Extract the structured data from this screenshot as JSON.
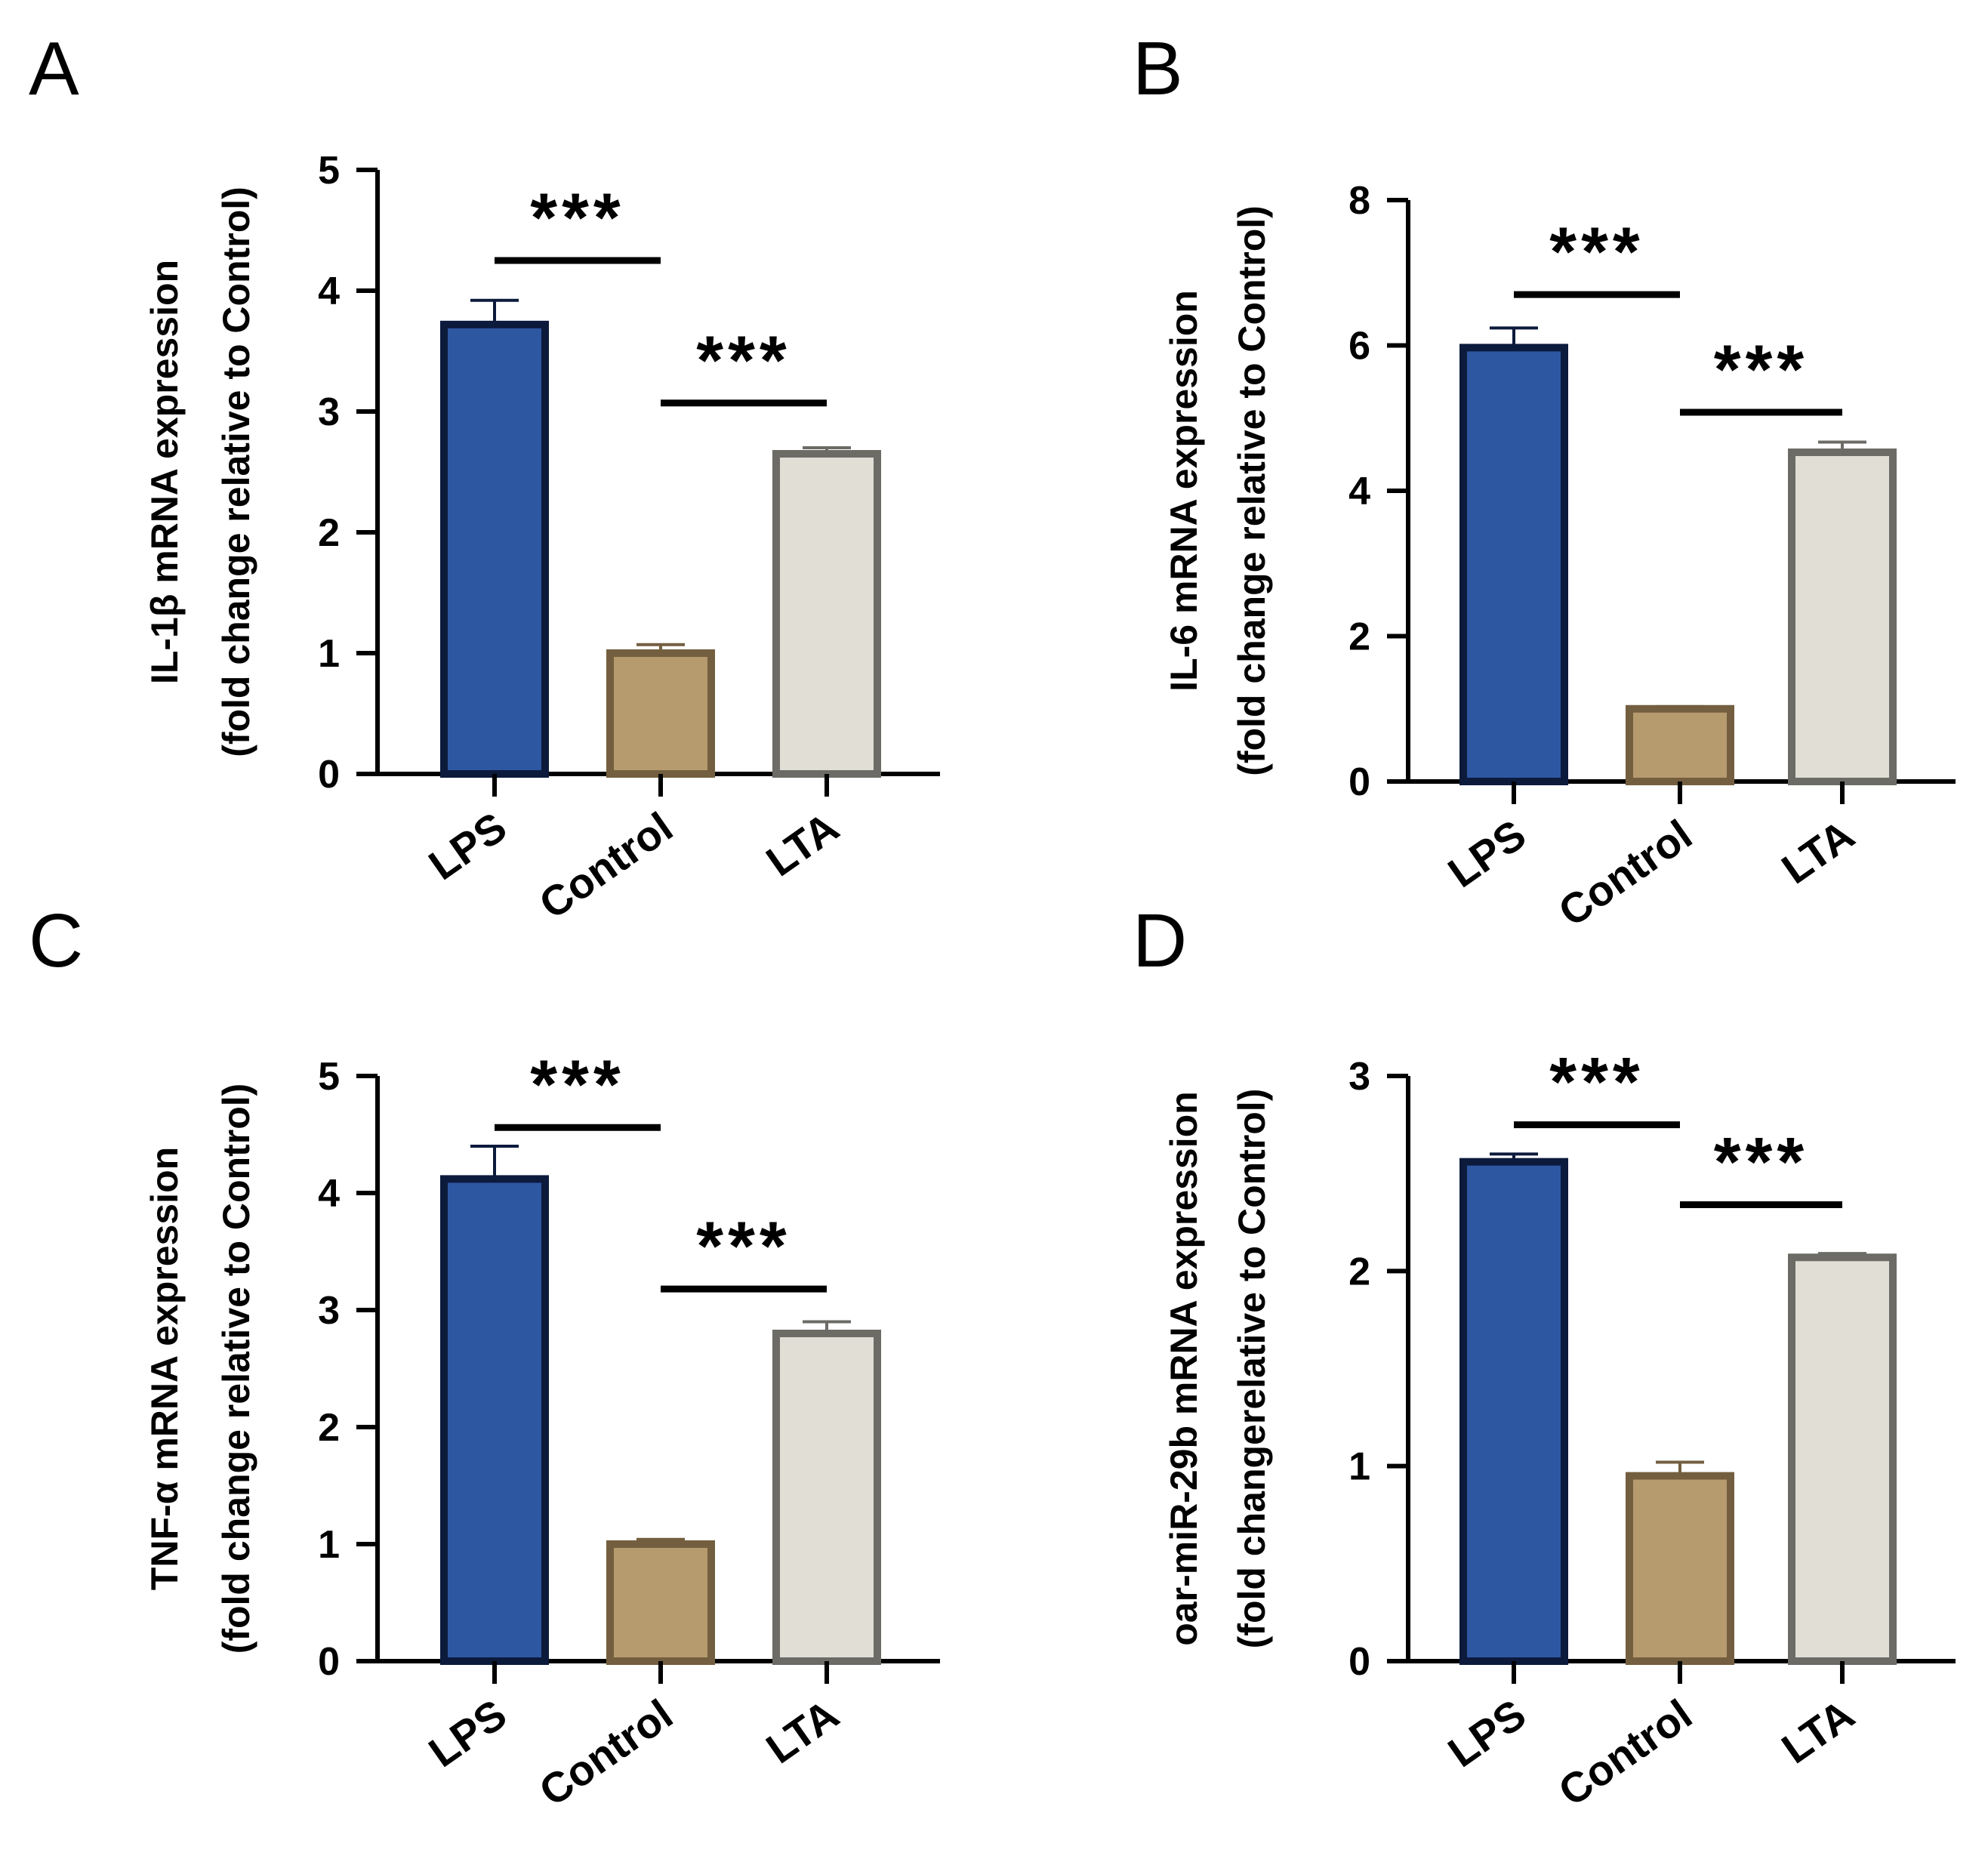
{
  "colors": {
    "LPS": {
      "fill": "#2e57a2",
      "stroke": "#0c1a3c"
    },
    "Control": {
      "fill": "#b69b6e",
      "stroke": "#735f3f"
    },
    "LTA": {
      "fill": "#e1ded5",
      "stroke": "#6c6b66"
    },
    "error_LPS": "#0c1a3c",
    "error_Control": "#735f3f",
    "error_LTA": "#6c6b66"
  },
  "chart_data": [
    {
      "panel": "A",
      "type": "bar",
      "categories": [
        "LPS",
        "Control",
        "LTA"
      ],
      "values": [
        3.72,
        1.0,
        2.65
      ],
      "errors": [
        0.2,
        0.07,
        0.05
      ],
      "ylim": [
        0,
        5
      ],
      "yticks": [
        "0",
        "1",
        "2",
        "3",
        "4",
        "5"
      ],
      "ylabel_line1": "IL-1β mRNA expression",
      "ylabel_line2": "(fold change relative to Control)",
      "significance": [
        {
          "label": "***",
          "between": [
            "LPS",
            "Control"
          ],
          "y": 4.25
        },
        {
          "label": "***",
          "between": [
            "Control",
            "LTA"
          ],
          "y": 3.07
        }
      ]
    },
    {
      "panel": "B",
      "type": "bar",
      "categories": [
        "LPS",
        "Control",
        "LTA"
      ],
      "values": [
        5.97,
        1.0,
        4.53
      ],
      "errors": [
        0.27,
        0.03,
        0.14
      ],
      "ylim": [
        0,
        8
      ],
      "yticks": [
        "0",
        "2",
        "4",
        "6",
        "8"
      ],
      "ylabel_line1": "IL-6 mRNA expression",
      "ylabel_line2": "(fold change relative to Control)",
      "significance": [
        {
          "label": "***",
          "between": [
            "LPS",
            "Control"
          ],
          "y": 6.7
        },
        {
          "label": "***",
          "between": [
            "Control",
            "LTA"
          ],
          "y": 5.08
        }
      ]
    },
    {
      "panel": "C",
      "type": "bar",
      "categories": [
        "LPS",
        "Control",
        "LTA"
      ],
      "values": [
        4.12,
        1.0,
        2.8
      ],
      "errors": [
        0.28,
        0.04,
        0.1
      ],
      "ylim": [
        0,
        5
      ],
      "yticks": [
        "0",
        "1",
        "2",
        "3",
        "4",
        "5"
      ],
      "ylabel_line1": "TNF-α mRNA expression",
      "ylabel_line2": "(fold change relative to Control)",
      "significance": [
        {
          "label": "***",
          "between": [
            "LPS",
            "Control"
          ],
          "y": 4.56
        },
        {
          "label": "***",
          "between": [
            "Control",
            "LTA"
          ],
          "y": 3.18
        }
      ]
    },
    {
      "panel": "D",
      "type": "bar",
      "categories": [
        "LPS",
        "Control",
        "LTA"
      ],
      "values": [
        2.56,
        0.95,
        2.07
      ],
      "errors": [
        0.04,
        0.07,
        0.02
      ],
      "ylim": [
        0,
        3
      ],
      "yticks": [
        "0",
        "1",
        "2",
        "3"
      ],
      "ylabel_line1": "oar-miR-29b mRNA expression",
      "ylabel_line2": "(fold changerelative to Control)",
      "significance": [
        {
          "label": "***",
          "between": [
            "LPS",
            "Control"
          ],
          "y": 2.75
        },
        {
          "label": "***",
          "between": [
            "Control",
            "LTA"
          ],
          "y": 2.34
        }
      ]
    }
  ]
}
